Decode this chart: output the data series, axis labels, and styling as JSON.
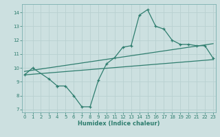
{
  "xlabel": "Humidex (Indice chaleur)",
  "bg_color": "#cce0e0",
  "line_color": "#2e7d6e",
  "grid_color": "#b8d0d0",
  "line1_x": [
    0,
    1,
    3,
    4,
    4,
    5,
    6,
    7,
    8,
    9,
    10,
    11,
    12,
    13,
    14,
    15,
    16,
    17,
    18,
    19,
    20,
    21,
    22,
    23
  ],
  "line1_y": [
    9.5,
    10.0,
    9.2,
    8.7,
    8.7,
    8.7,
    8.0,
    7.2,
    7.2,
    9.1,
    10.3,
    10.75,
    11.5,
    11.6,
    13.8,
    14.2,
    13.0,
    12.8,
    12.0,
    11.7,
    11.7,
    11.6,
    11.6,
    10.7
  ],
  "line2_x": [
    0,
    23
  ],
  "line2_y": [
    9.5,
    10.6
  ],
  "line3_x": [
    0,
    23
  ],
  "line3_y": [
    9.75,
    11.75
  ],
  "xlim": [
    -0.3,
    23.3
  ],
  "ylim": [
    6.8,
    14.6
  ],
  "xticks": [
    0,
    1,
    2,
    3,
    4,
    5,
    6,
    7,
    8,
    9,
    10,
    11,
    12,
    13,
    14,
    15,
    16,
    17,
    18,
    19,
    20,
    21,
    22,
    23
  ],
  "yticks": [
    7,
    8,
    9,
    10,
    11,
    12,
    13,
    14
  ],
  "xlabel_fontsize": 6.0,
  "tick_fontsize": 5.0
}
